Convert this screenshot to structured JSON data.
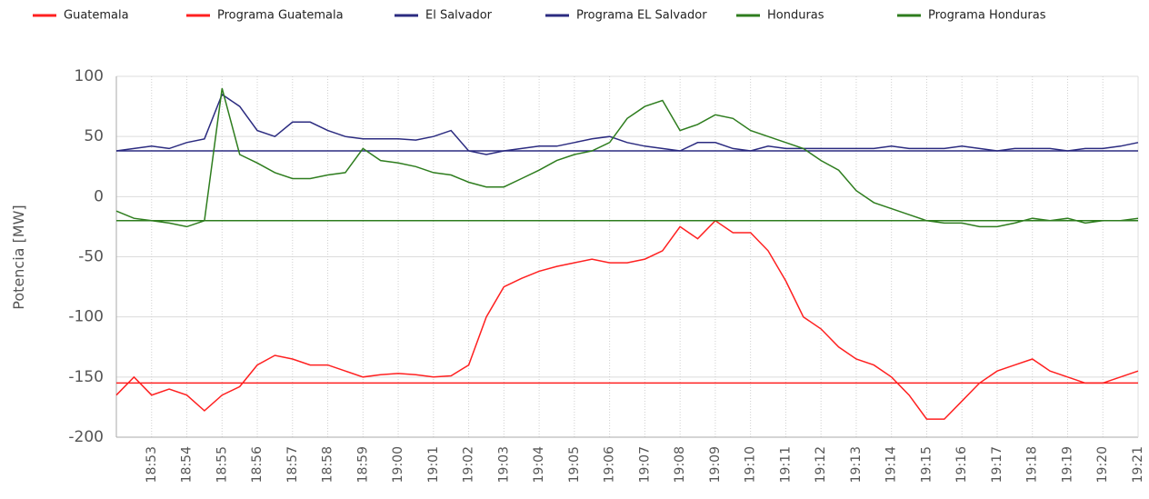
{
  "chart_data": {
    "type": "line",
    "y_label": "Potencia [MW]",
    "x": [
      "18:52:00",
      "18:52:30",
      "18:53:00",
      "18:53:30",
      "18:54:00",
      "18:54:30",
      "18:55:00",
      "18:55:30",
      "18:56:00",
      "18:56:30",
      "18:57:00",
      "18:57:30",
      "18:58:00",
      "18:58:30",
      "18:59:00",
      "18:59:30",
      "19:00:00",
      "19:00:30",
      "19:01:00",
      "19:01:30",
      "19:02:00",
      "19:02:30",
      "19:03:00",
      "19:03:30",
      "19:04:00",
      "19:04:30",
      "19:05:00",
      "19:05:30",
      "19:06:00",
      "19:06:30",
      "19:07:00",
      "19:07:30",
      "19:08:00",
      "19:08:30",
      "19:09:00",
      "19:09:30",
      "19:10:00",
      "19:10:30",
      "19:11:00",
      "19:11:30",
      "19:12:00",
      "19:12:30",
      "19:13:00",
      "19:13:30",
      "19:14:00",
      "19:14:30",
      "19:15:00",
      "19:15:30",
      "19:16:00",
      "19:16:30",
      "19:17:00",
      "19:17:30",
      "19:18:00",
      "19:18:30",
      "19:19:00",
      "19:19:30",
      "19:20:00",
      "19:20:30",
      "19:21:00"
    ],
    "series": [
      {
        "name": "Guatemala",
        "color": "#ff2020",
        "values": [
          -165,
          -150,
          -165,
          -160,
          -165,
          -178,
          -165,
          -158,
          -140,
          -132,
          -135,
          -140,
          -140,
          -145,
          -150,
          -148,
          -147,
          -148,
          -150,
          -149,
          -140,
          -100,
          -75,
          -68,
          -62,
          -58,
          -55,
          -52,
          -55,
          -55,
          -52,
          -45,
          -25,
          -35,
          -20,
          -30,
          -30,
          -45,
          -70,
          -100,
          -110,
          -125,
          -135,
          -140,
          -150,
          -165,
          -185,
          -185,
          -170,
          -155,
          -145,
          -140,
          -135,
          -145,
          -150,
          -155,
          -155,
          -150,
          -145
        ]
      },
      {
        "name": "Programa Guatemala",
        "color": "#ff2020",
        "x": [
          "18:52:00",
          "19:21:00"
        ],
        "values": [
          -155,
          -155
        ]
      },
      {
        "name": "El Salvador",
        "color": "#2b2b80",
        "values": [
          38,
          40,
          42,
          40,
          45,
          48,
          85,
          75,
          55,
          50,
          62,
          62,
          55,
          50,
          48,
          48,
          48,
          47,
          50,
          55,
          38,
          35,
          38,
          40,
          42,
          42,
          45,
          48,
          50,
          45,
          42,
          40,
          38,
          45,
          45,
          40,
          38,
          42,
          40,
          40,
          40,
          40,
          40,
          40,
          42,
          40,
          40,
          40,
          42,
          40,
          38,
          40,
          40,
          40,
          38,
          40,
          40,
          42,
          45
        ]
      },
      {
        "name": "Programa EL Salvador",
        "color": "#2b2b80",
        "x": [
          "18:52:00",
          "19:21:00"
        ],
        "values": [
          38,
          38
        ]
      },
      {
        "name": "Honduras",
        "color": "#2e7d1e",
        "values": [
          -12,
          -18,
          -20,
          -22,
          -25,
          -20,
          90,
          35,
          28,
          20,
          15,
          15,
          18,
          20,
          40,
          30,
          28,
          25,
          20,
          18,
          12,
          8,
          8,
          15,
          22,
          30,
          35,
          38,
          45,
          65,
          75,
          80,
          55,
          60,
          68,
          65,
          55,
          50,
          45,
          40,
          30,
          22,
          5,
          -5,
          -10,
          -15,
          -20,
          -22,
          -22,
          -25,
          -25,
          -22,
          -18,
          -20,
          -18,
          -22,
          -20,
          -20,
          -18
        ]
      },
      {
        "name": "Programa Honduras",
        "color": "#2e7d1e",
        "x": [
          "18:52:00",
          "19:21:00"
        ],
        "values": [
          -20,
          -20
        ]
      }
    ],
    "xlim": [
      "18:52:00",
      "19:21:00"
    ],
    "xticks": [
      "18:53",
      "18:54",
      "18:55",
      "18:56",
      "18:57",
      "18:58",
      "18:59",
      "19:00",
      "19:01",
      "19:02",
      "19:03",
      "19:04",
      "19:05",
      "19:06",
      "19:07",
      "19:08",
      "19:09",
      "19:10",
      "19:11",
      "19:12",
      "19:13",
      "19:14",
      "19:15",
      "19:16",
      "19:17",
      "19:18",
      "19:19",
      "19:20",
      "19:21"
    ],
    "ylim": [
      -200,
      100
    ],
    "yticks": [
      -200,
      -150,
      -100,
      -50,
      0,
      50,
      100
    ],
    "grid": true,
    "legend": "top"
  }
}
